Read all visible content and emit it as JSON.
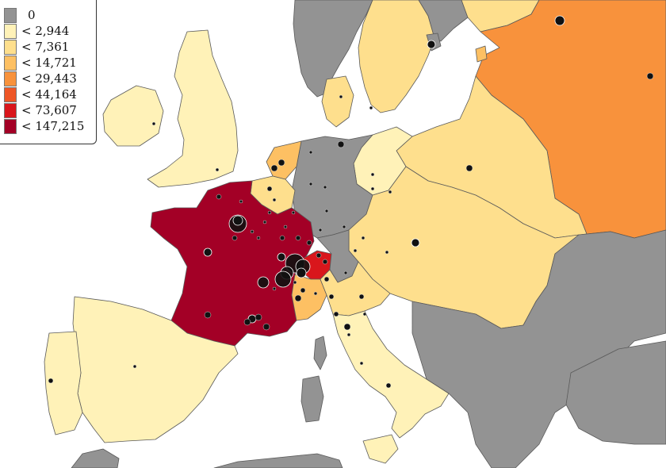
{
  "legend": {
    "items": [
      {
        "label": "0",
        "color": "#939393"
      },
      {
        "label": "< 2,944",
        "color": "#fff2b8"
      },
      {
        "label": "< 7,361",
        "color": "#fedf8d"
      },
      {
        "label": "< 14,721",
        "color": "#fdc063"
      },
      {
        "label": "< 29,443",
        "color": "#f8923c"
      },
      {
        "label": "< 44,164",
        "color": "#ee5626"
      },
      {
        "label": "< 73,607",
        "color": "#d9161c"
      },
      {
        "label": "< 147,215",
        "color": "#a30026"
      }
    ]
  },
  "colors": {
    "sea": "#ffffff",
    "border": "#5a5a5a",
    "marker_fill": "#111111",
    "marker_stroke": "#ffffff"
  }
}
